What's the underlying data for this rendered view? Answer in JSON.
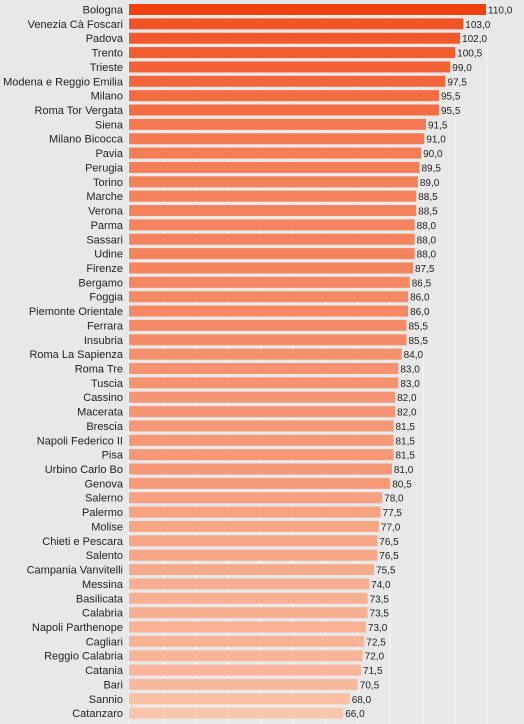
{
  "chart_data": {
    "type": "bar",
    "orientation": "horizontal",
    "grid": true,
    "categories": [
      "Bologna",
      "Venezia Cà Foscari",
      "Padova",
      "Trento",
      "Trieste",
      "Modena e Reggio Emilia",
      "Milano",
      "Roma Tor Vergata",
      "Siena",
      "Milano Bicocca",
      "Pavia",
      "Perugia",
      "Torino",
      "Marche",
      "Verona",
      "Parma",
      "Sassari",
      "Udine",
      "Firenze",
      "Bergamo",
      "Foggia",
      "Piemonte Orientale",
      "Ferrara",
      "Insubria",
      "Roma La Sapienza",
      "Roma Tre",
      "Tuscia",
      "Cassino",
      "Macerata",
      "Brescia",
      "Napoli Federico II",
      "Pisa",
      "Urbino Carlo Bo",
      "Genova",
      "Salerno",
      "Palermo",
      "Molise",
      "Chieti e Pescara",
      "Salento",
      "Campania Vanvitelli",
      "Messina",
      "Basilicata",
      "Calabria",
      "Napoli Parthenope",
      "Cagliari",
      "Reggio Calabria",
      "Catania",
      "Bari",
      "Sannio",
      "Catanzaro"
    ],
    "values": [
      110,
      103,
      102,
      100.5,
      99,
      97.5,
      95.5,
      95.5,
      91.5,
      91,
      90,
      89.5,
      89,
      88.5,
      88.5,
      88,
      88,
      88,
      87.5,
      86.5,
      86,
      86,
      85.5,
      85.5,
      84,
      83,
      83,
      82,
      82,
      81.5,
      81.5,
      81.5,
      81,
      80.5,
      78,
      77.5,
      77,
      76.5,
      76.5,
      75.5,
      74,
      73.5,
      73.5,
      73,
      72.5,
      72,
      71.5,
      70.5,
      68,
      66
    ],
    "value_labels": [
      "110,0",
      "103,0",
      "102,0",
      "100,5",
      "99,0",
      "97,5",
      "95,5",
      "95,5",
      "91,5",
      "91,0",
      "90,0",
      "89,5",
      "89,0",
      "88,5",
      "88,5",
      "88,0",
      "88,0",
      "88,0",
      "87,5",
      "86,5",
      "86,0",
      "86,0",
      "85,5",
      "85,5",
      "84,0",
      "83,0",
      "83,0",
      "82,0",
      "82,0",
      "81,5",
      "81,5",
      "81,5",
      "81,0",
      "80,5",
      "78,0",
      "77,5",
      "77,0",
      "76,5",
      "76,5",
      "75,5",
      "74,0",
      "73,5",
      "73,5",
      "73,0",
      "72,5",
      "72,0",
      "71,5",
      "70,5",
      "68,0",
      "66,0"
    ],
    "colors": {
      "max": "#f0400e",
      "min": "#f9c6ad",
      "grid": "#f6f6f6",
      "background": "#e8e8e8"
    }
  }
}
